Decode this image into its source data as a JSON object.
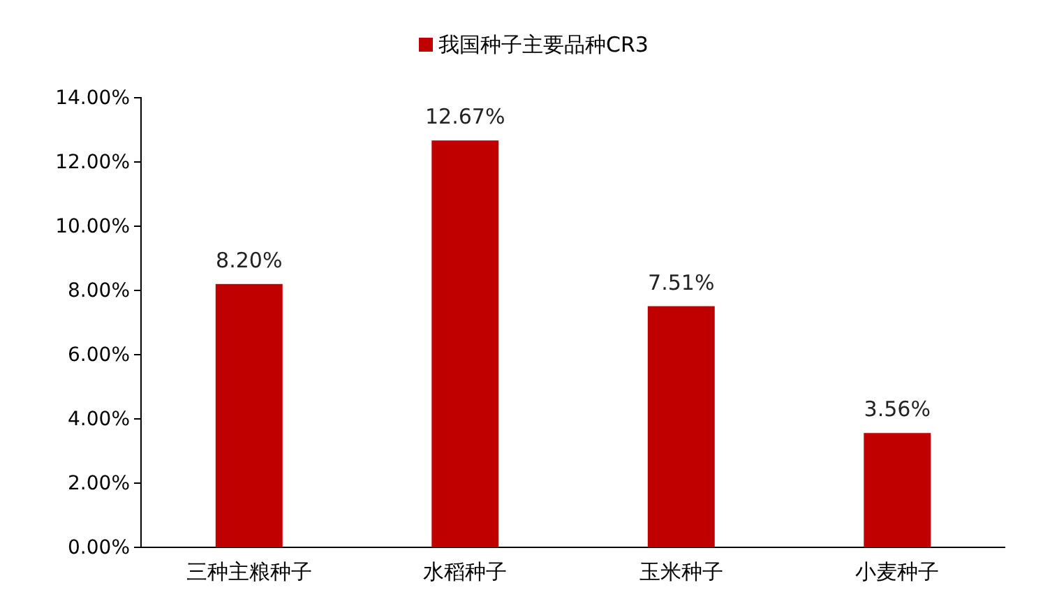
{
  "chart_data": {
    "type": "bar",
    "categories": [
      "三种主粮种子",
      "水稻种子",
      "玉米种子",
      "小麦种子"
    ],
    "series": [
      {
        "name": "我国种子主要品种CR3",
        "color": "#c00000",
        "values": [
          8.2,
          12.67,
          7.51,
          3.56
        ],
        "value_labels": [
          "8.20%",
          "12.67%",
          "7.51%",
          "3.56%"
        ]
      }
    ],
    "ylim": [
      0,
      14
    ],
    "yticks": [
      {
        "value": 0,
        "label": "0.00%"
      },
      {
        "value": 2,
        "label": "2.00%"
      },
      {
        "value": 4,
        "label": "4.00%"
      },
      {
        "value": 6,
        "label": "6.00%"
      },
      {
        "value": 8,
        "label": "8.00%"
      },
      {
        "value": 10,
        "label": "10.00%"
      },
      {
        "value": 12,
        "label": "12.00%"
      },
      {
        "value": 14,
        "label": "14.00%"
      }
    ],
    "legend": "top",
    "grid": false
  }
}
